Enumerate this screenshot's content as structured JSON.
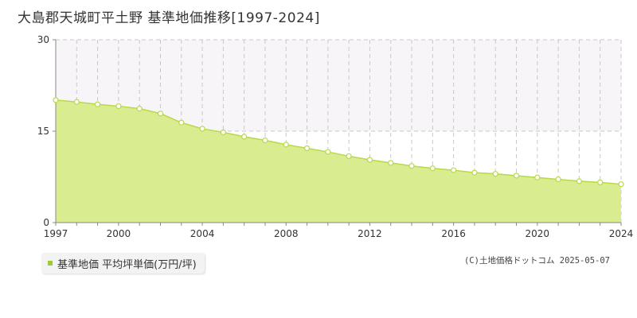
{
  "title": "大島郡天城町平土野 基準地価推移[1997-2024]",
  "legend": {
    "label": "基準地価 平均坪単価(万円/坪)"
  },
  "copyright": "(C)土地価格ドットコム 2025-05-07",
  "colors": {
    "fill": "#d9ec8f",
    "line": "#b7d94a",
    "marker_fill": "#ffffff",
    "marker_stroke": "#b7d94a",
    "grid": "#c8c8c8",
    "band": "#f7f5f8"
  },
  "chart_data": {
    "type": "area",
    "x": [
      1997,
      1998,
      1999,
      2000,
      2001,
      2002,
      2003,
      2004,
      2005,
      2006,
      2007,
      2008,
      2009,
      2010,
      2011,
      2012,
      2013,
      2014,
      2015,
      2016,
      2017,
      2018,
      2019,
      2020,
      2021,
      2022,
      2023,
      2024
    ],
    "series": [
      {
        "name": "基準地価 平均坪単価(万円/坪)",
        "values": [
          20.1,
          19.8,
          19.4,
          19.1,
          18.7,
          17.9,
          16.4,
          15.4,
          14.8,
          14.1,
          13.5,
          12.8,
          12.2,
          11.6,
          10.9,
          10.3,
          9.8,
          9.3,
          8.9,
          8.6,
          8.2,
          8.0,
          7.7,
          7.4,
          7.1,
          6.8,
          6.6,
          6.3
        ]
      }
    ],
    "ylim": [
      0,
      30
    ],
    "yticks": [
      "0",
      "15",
      "30"
    ],
    "xticks": [
      "1997",
      "2000",
      "2004",
      "2008",
      "2012",
      "2016",
      "2020",
      "2024"
    ],
    "grid": true
  }
}
